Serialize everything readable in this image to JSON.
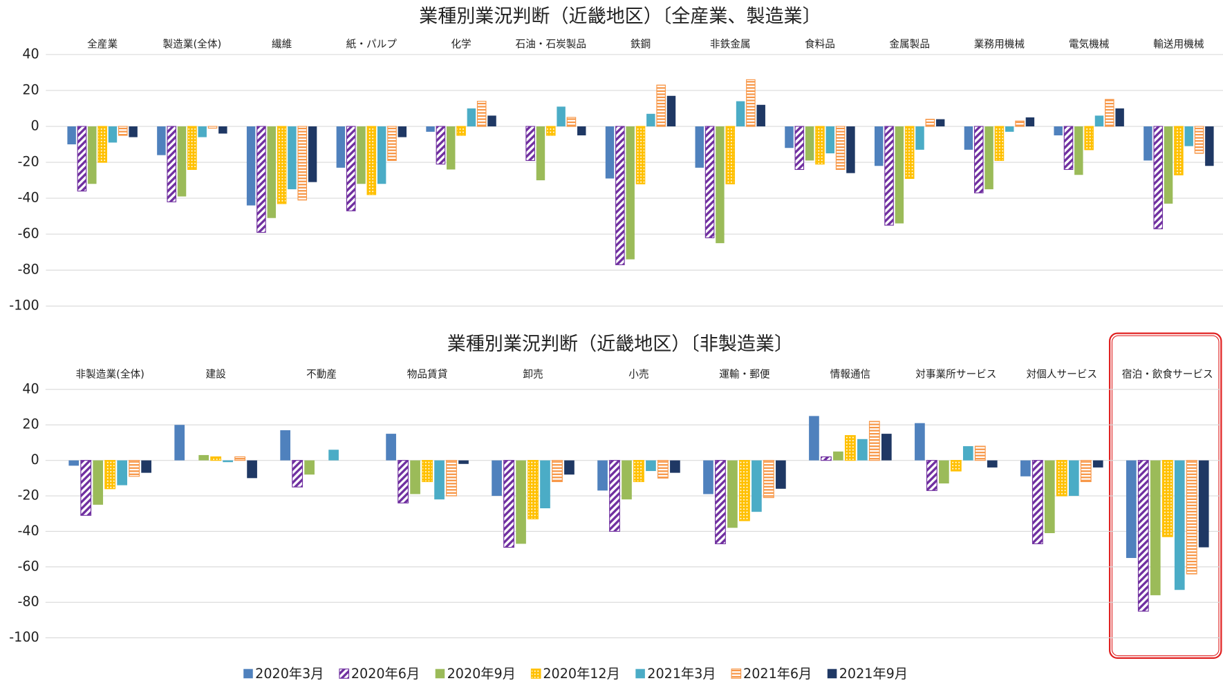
{
  "chart_data": [
    {
      "type": "bar",
      "title": "業種別業況判断（近畿地区）〔全産業、製造業〕",
      "categories": [
        "全産業",
        "製造業(全体)",
        "繊維",
        "紙・パルプ",
        "化学",
        "石油・石炭製品",
        "鉄鋼",
        "非鉄金属",
        "食料品",
        "金属製品",
        "業務用機械",
        "電気機械",
        "輸送用機械"
      ],
      "series": [
        {
          "name": "2020年3月",
          "color": "#4f81bd",
          "values": [
            -10,
            -16,
            -44,
            -23,
            -3,
            0,
            -29,
            -23,
            -12,
            -22,
            -13,
            -5,
            -19
          ]
        },
        {
          "name": "2020年6月",
          "color": "#7030a0",
          "pattern": "diagonal",
          "values": [
            -36,
            -42,
            -59,
            -47,
            -21,
            -19,
            -77,
            -62,
            -24,
            -55,
            -37,
            -24,
            -57
          ]
        },
        {
          "name": "2020年9月",
          "color": "#9bbb59",
          "values": [
            -32,
            -39,
            -51,
            -32,
            -24,
            -30,
            -74,
            -65,
            -19,
            -54,
            -35,
            -27,
            -43
          ]
        },
        {
          "name": "2020年12月",
          "color": "#ffc000",
          "pattern": "dots",
          "values": [
            -20,
            -24,
            -43,
            -38,
            -5,
            -5,
            -32,
            -32,
            -21,
            -29,
            -19,
            -13,
            -27
          ]
        },
        {
          "name": "2021年3月",
          "color": "#4bacc6",
          "values": [
            -9,
            -6,
            -35,
            -32,
            10,
            11,
            7,
            14,
            -15,
            -13,
            -3,
            6,
            -11
          ]
        },
        {
          "name": "2021年6月",
          "color": "#f79646",
          "pattern": "horizontal",
          "values": [
            -5,
            -1,
            -41,
            -19,
            14,
            5,
            23,
            26,
            -24,
            4,
            3,
            15,
            -15
          ]
        },
        {
          "name": "2021年9月",
          "color": "#1f3864",
          "values": [
            -6,
            -4,
            -31,
            -6,
            6,
            -5,
            17,
            12,
            -26,
            4,
            5,
            10,
            -22
          ]
        }
      ],
      "ylim": [
        -100,
        40
      ],
      "yticks": [
        40,
        20,
        0,
        -20,
        -40,
        -60,
        -80,
        -100
      ],
      "grid": true,
      "legend": "bottom"
    },
    {
      "type": "bar",
      "title": "業種別業況判断（近畿地区）〔非製造業〕",
      "categories": [
        "非製造業(全体)",
        "建設",
        "不動産",
        "物品賃貸",
        "卸売",
        "小売",
        "運輸・郵便",
        "情報通信",
        "対事業所サービス",
        "対個人サービス",
        "宿泊・飲食サービス"
      ],
      "series": [
        {
          "color": "#4f81bd",
          "values": [
            -3,
            20,
            17,
            15,
            -20,
            -17,
            -19,
            25,
            21,
            -9,
            -55
          ]
        },
        {
          "color": "#7030a0",
          "pattern": "diagonal",
          "values": [
            -31,
            0,
            -15,
            -24,
            -49,
            -40,
            -47,
            2,
            -17,
            -47,
            -85
          ]
        },
        {
          "color": "#9bbb59",
          "values": [
            -25,
            3,
            -8,
            -19,
            -47,
            -22,
            -38,
            5,
            -13,
            -41,
            -76
          ]
        },
        {
          "color": "#ffc000",
          "pattern": "dots",
          "values": [
            -16,
            2,
            0,
            -12,
            -33,
            -12,
            -34,
            14,
            -6,
            -20,
            -43
          ]
        },
        {
          "color": "#4bacc6",
          "values": [
            -14,
            -1,
            6,
            -22,
            -27,
            -6,
            -29,
            12,
            8,
            -20,
            -73
          ]
        },
        {
          "color": "#f79646",
          "pattern": "horizontal",
          "values": [
            -9,
            2,
            0,
            -20,
            -12,
            -10,
            -21,
            22,
            8,
            -12,
            -64
          ]
        },
        {
          "color": "#1f3864",
          "values": [
            -7,
            -10,
            0,
            -2,
            -8,
            -7,
            -16,
            15,
            -4,
            -4,
            -49
          ]
        }
      ],
      "ylim": [
        -100,
        40
      ],
      "yticks": [
        40,
        20,
        0,
        -20,
        -40,
        -60,
        -80,
        -100
      ],
      "grid": true
    }
  ]
}
